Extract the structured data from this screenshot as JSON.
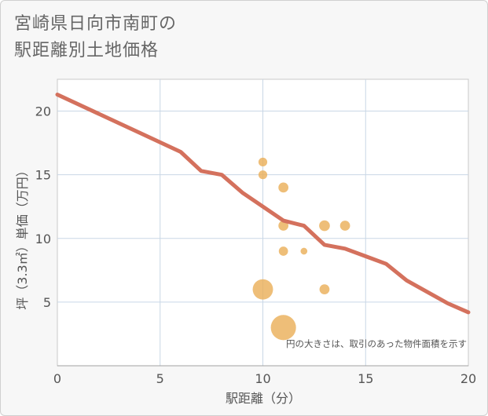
{
  "title_line1": "宮崎県日向市南町の",
  "title_line2": "駅距離別土地価格",
  "chart_data": {
    "type": "scatter+line",
    "xlabel": "駅距離（分）",
    "ylabel": "坪（3.3㎡）単価（万円）",
    "xlim": [
      0,
      20
    ],
    "ylim": [
      0,
      22.5
    ],
    "xticks": [
      0,
      5,
      10,
      15,
      20
    ],
    "yticks": [
      5,
      10,
      15,
      20
    ],
    "grid": true,
    "note": "円の大きさは、取引のあった物件面積を示す",
    "line_series": {
      "name": "trend",
      "color": "#d4715d",
      "x": [
        0,
        2,
        4,
        6,
        7,
        8,
        9,
        10,
        11,
        12,
        13,
        14,
        15,
        16,
        17,
        18,
        19,
        20
      ],
      "y": [
        21.3,
        19.8,
        18.3,
        16.8,
        15.3,
        15.0,
        13.6,
        12.5,
        11.4,
        11.0,
        9.5,
        9.2,
        8.6,
        8.0,
        6.7,
        5.8,
        4.9,
        4.2
      ]
    },
    "bubbles": {
      "color": "#eab05a",
      "points": [
        {
          "x": 10,
          "y": 16,
          "size": 1
        },
        {
          "x": 10,
          "y": 15,
          "size": 1
        },
        {
          "x": 11,
          "y": 14,
          "size": 1.3
        },
        {
          "x": 11,
          "y": 11,
          "size": 1.3
        },
        {
          "x": 13,
          "y": 11,
          "size": 1.5
        },
        {
          "x": 14,
          "y": 11,
          "size": 1.3
        },
        {
          "x": 11,
          "y": 9,
          "size": 1.1
        },
        {
          "x": 12,
          "y": 9,
          "size": 0.6
        },
        {
          "x": 10,
          "y": 6,
          "size": 2.8
        },
        {
          "x": 13,
          "y": 6,
          "size": 1.3
        },
        {
          "x": 11,
          "y": 3,
          "size": 4.3
        }
      ]
    }
  }
}
